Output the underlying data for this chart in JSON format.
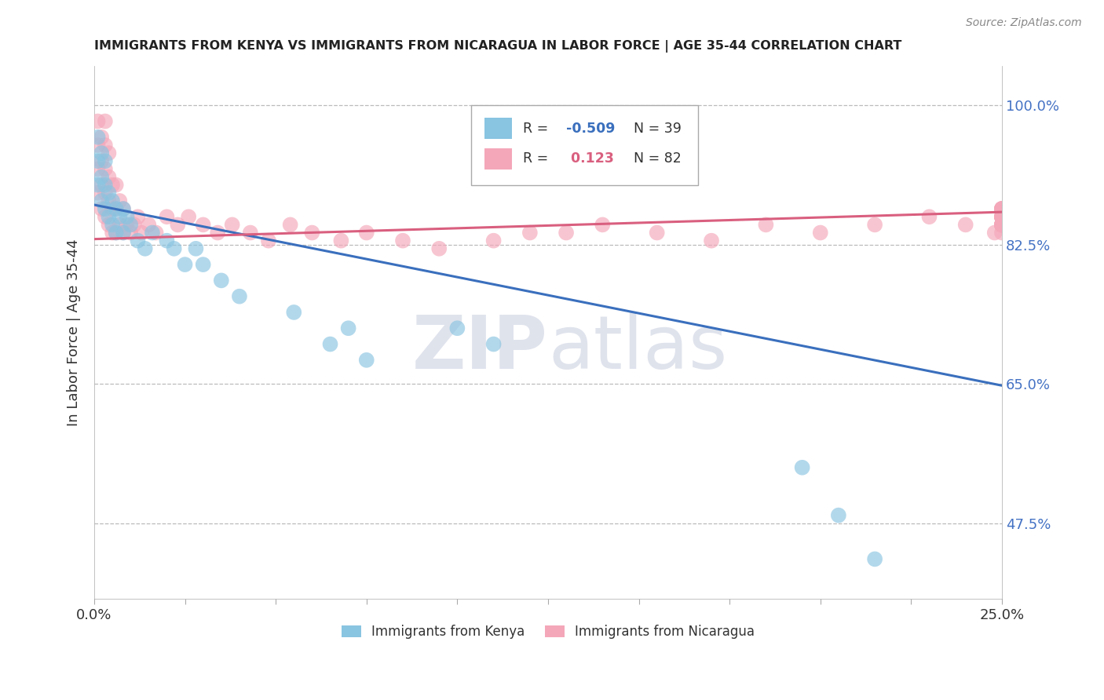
{
  "title": "IMMIGRANTS FROM KENYA VS IMMIGRANTS FROM NICARAGUA IN LABOR FORCE | AGE 35-44 CORRELATION CHART",
  "source": "Source: ZipAtlas.com",
  "ylabel": "In Labor Force | Age 35-44",
  "legend_kenya": "Immigrants from Kenya",
  "legend_nicaragua": "Immigrants from Nicaragua",
  "R_kenya": -0.509,
  "N_kenya": 39,
  "R_nicaragua": 0.123,
  "N_nicaragua": 82,
  "xlim": [
    0.0,
    0.25
  ],
  "ylim": [
    0.38,
    1.05
  ],
  "yticks": [
    0.475,
    0.65,
    0.825,
    1.0
  ],
  "ytick_labels": [
    "47.5%",
    "65.0%",
    "82.5%",
    "100.0%"
  ],
  "color_kenya": "#89c4e1",
  "color_nicaragua": "#f4a7b9",
  "color_kenya_line": "#3a6fbd",
  "color_nicaragua_line": "#d95f7f",
  "watermark_zip": "ZIP",
  "watermark_atlas": "atlas",
  "background_color": "#ffffff",
  "grid_color": "#bbbbbb",
  "dot_size": 200,
  "kenya_x": [
    0.001,
    0.001,
    0.001,
    0.002,
    0.002,
    0.002,
    0.003,
    0.003,
    0.003,
    0.004,
    0.004,
    0.005,
    0.005,
    0.006,
    0.006,
    0.007,
    0.008,
    0.008,
    0.009,
    0.01,
    0.012,
    0.014,
    0.016,
    0.02,
    0.022,
    0.025,
    0.028,
    0.03,
    0.035,
    0.04,
    0.055,
    0.065,
    0.07,
    0.075,
    0.1,
    0.11,
    0.195,
    0.205,
    0.215
  ],
  "kenya_y": [
    0.9,
    0.93,
    0.96,
    0.88,
    0.91,
    0.94,
    0.87,
    0.9,
    0.93,
    0.86,
    0.89,
    0.85,
    0.88,
    0.84,
    0.87,
    0.86,
    0.84,
    0.87,
    0.86,
    0.85,
    0.83,
    0.82,
    0.84,
    0.83,
    0.82,
    0.8,
    0.82,
    0.8,
    0.78,
    0.76,
    0.74,
    0.7,
    0.72,
    0.68,
    0.72,
    0.7,
    0.545,
    0.485,
    0.43
  ],
  "nicaragua_x": [
    0.001,
    0.001,
    0.001,
    0.001,
    0.002,
    0.002,
    0.002,
    0.002,
    0.003,
    0.003,
    0.003,
    0.003,
    0.003,
    0.004,
    0.004,
    0.004,
    0.004,
    0.005,
    0.005,
    0.005,
    0.006,
    0.006,
    0.006,
    0.007,
    0.007,
    0.008,
    0.008,
    0.009,
    0.01,
    0.011,
    0.012,
    0.013,
    0.015,
    0.017,
    0.02,
    0.023,
    0.026,
    0.03,
    0.034,
    0.038,
    0.043,
    0.048,
    0.054,
    0.06,
    0.068,
    0.075,
    0.085,
    0.095,
    0.11,
    0.12,
    0.13,
    0.14,
    0.155,
    0.17,
    0.185,
    0.2,
    0.215,
    0.23,
    0.24,
    0.248,
    0.25,
    0.25,
    0.25,
    0.25,
    0.25,
    0.25,
    0.25,
    0.25,
    0.25,
    0.25,
    0.25,
    0.25,
    0.25,
    0.25,
    0.25,
    0.25,
    0.25,
    0.25,
    0.25,
    0.25,
    0.25,
    0.25
  ],
  "nicaragua_y": [
    0.89,
    0.92,
    0.95,
    0.98,
    0.87,
    0.9,
    0.93,
    0.96,
    0.86,
    0.89,
    0.92,
    0.95,
    0.98,
    0.85,
    0.88,
    0.91,
    0.94,
    0.84,
    0.87,
    0.9,
    0.84,
    0.87,
    0.9,
    0.85,
    0.88,
    0.84,
    0.87,
    0.85,
    0.84,
    0.85,
    0.86,
    0.84,
    0.85,
    0.84,
    0.86,
    0.85,
    0.86,
    0.85,
    0.84,
    0.85,
    0.84,
    0.83,
    0.85,
    0.84,
    0.83,
    0.84,
    0.83,
    0.82,
    0.83,
    0.84,
    0.84,
    0.85,
    0.84,
    0.83,
    0.85,
    0.84,
    0.85,
    0.86,
    0.85,
    0.84,
    0.86,
    0.87,
    0.85,
    0.84,
    0.85,
    0.86,
    0.85,
    0.86,
    0.87,
    0.86,
    0.85,
    0.86,
    0.87,
    0.85,
    0.86,
    0.87,
    0.85,
    0.86,
    0.87,
    0.85,
    0.86,
    0.87
  ],
  "kenya_trendline_y0": 0.875,
  "kenya_trendline_y1": 0.648,
  "nicaragua_trendline_y0": 0.832,
  "nicaragua_trendline_y1": 0.866
}
